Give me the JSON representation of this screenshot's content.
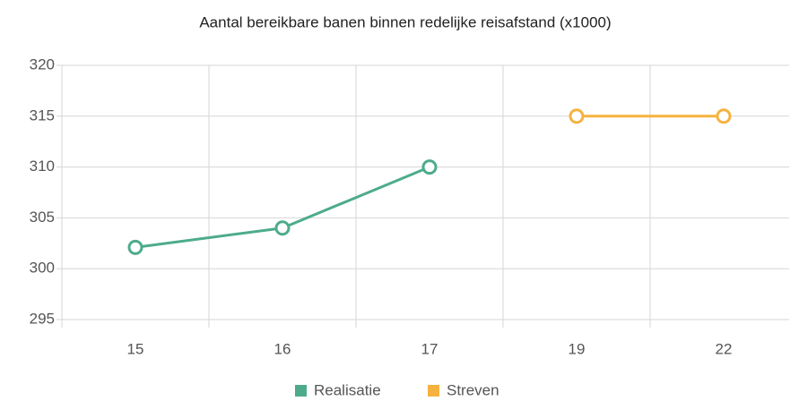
{
  "chart_data": {
    "type": "line",
    "title": "Aantal bereikbare banen binnen redelijke reisafstand (x1000)",
    "categories": [
      "15",
      "16",
      "17",
      "19",
      "22"
    ],
    "series": [
      {
        "name": "Realisatie",
        "color": "#4dab8c",
        "values": [
          302.1,
          304,
          310,
          null,
          null
        ]
      },
      {
        "name": "Streven",
        "color": "#f6b23e",
        "values": [
          null,
          null,
          null,
          315,
          315
        ]
      }
    ],
    "ylim": [
      295,
      320
    ],
    "yticks": [
      295,
      300,
      305,
      310,
      315,
      320
    ],
    "grid": true,
    "legend": "bottom"
  }
}
